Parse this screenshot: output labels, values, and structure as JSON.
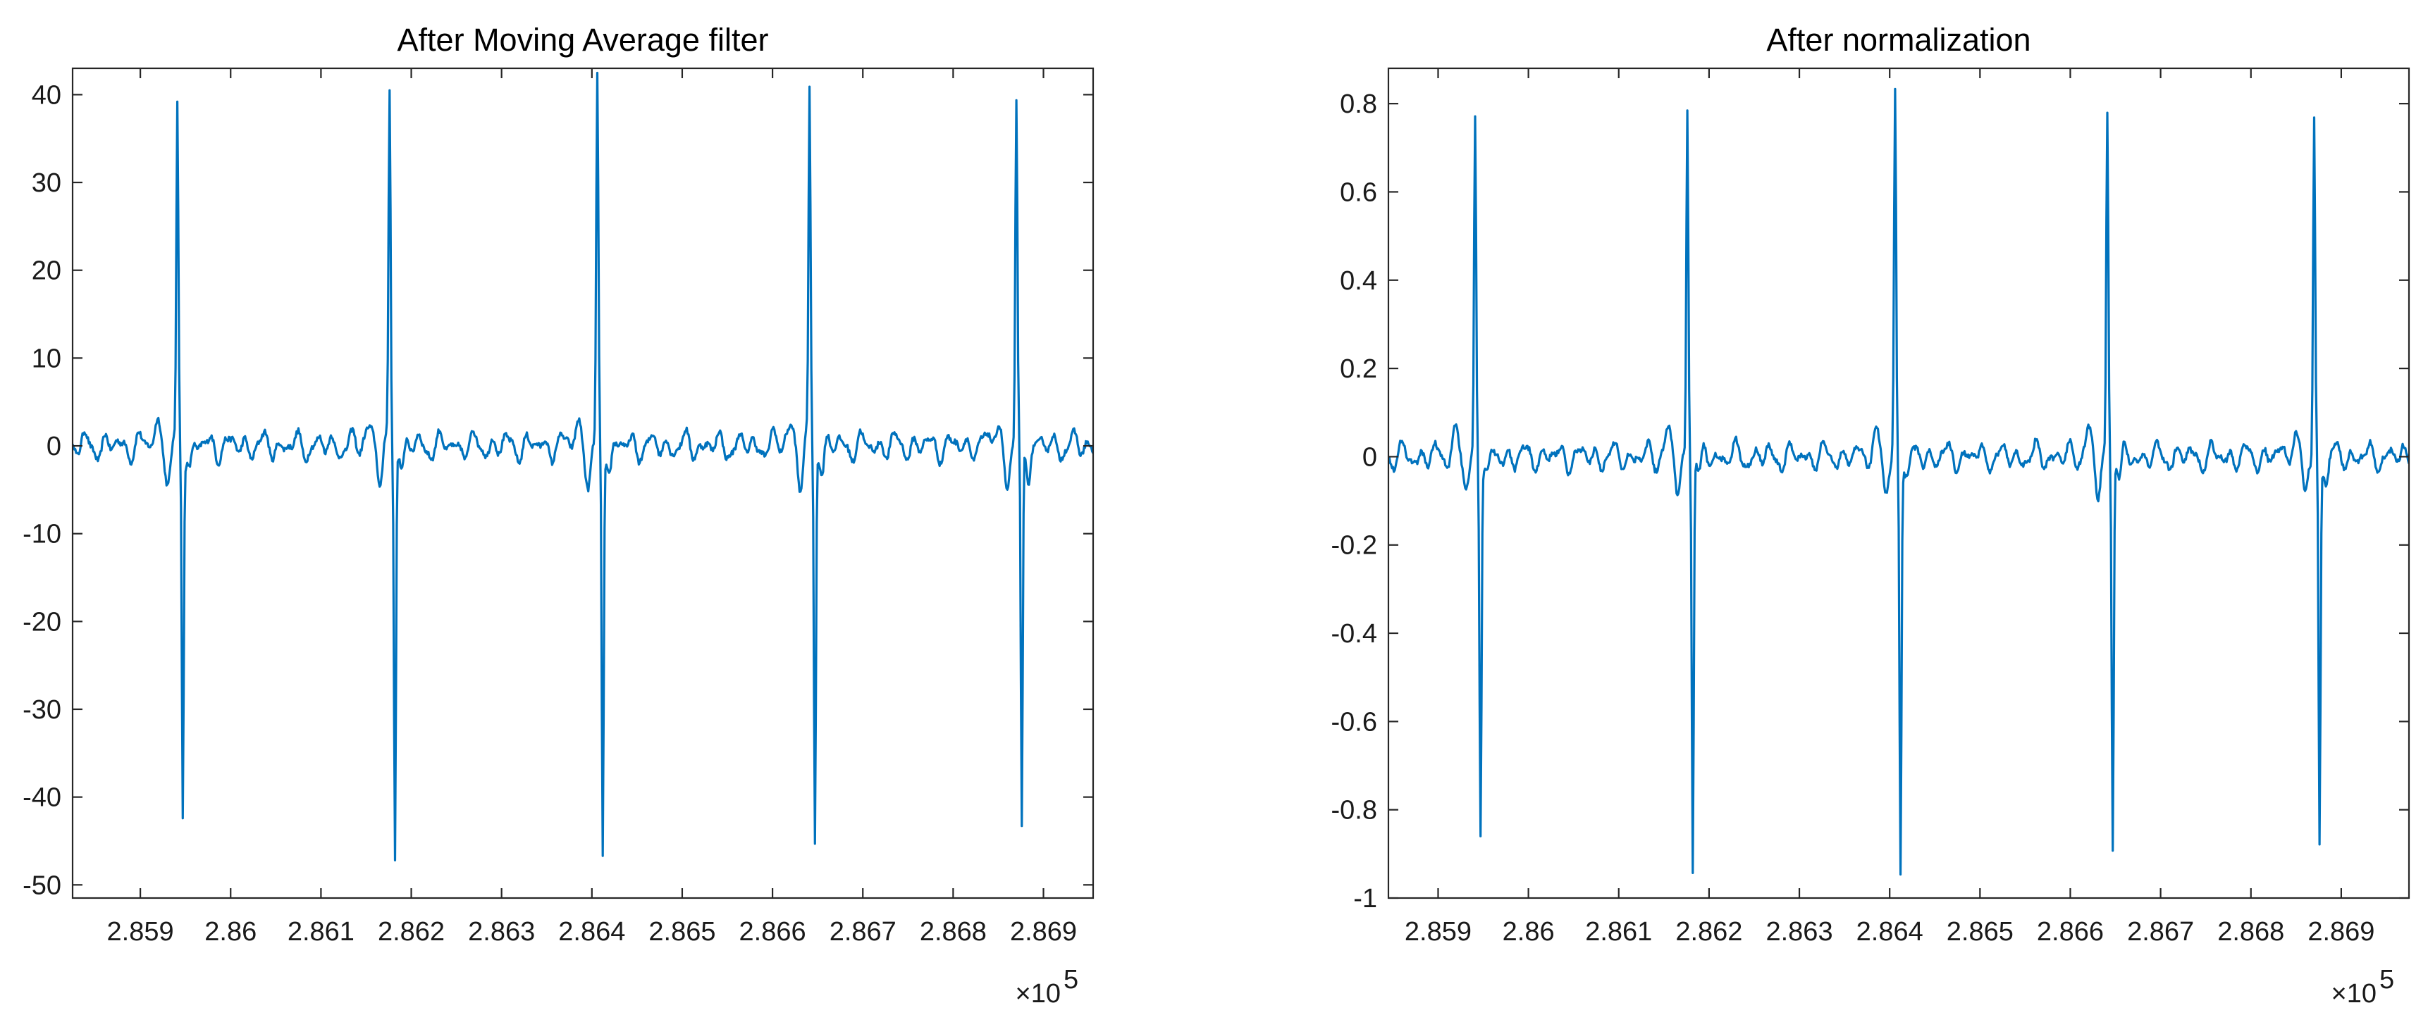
{
  "colors": {
    "line": "#0072BD",
    "axis": "#262626",
    "background": "#ffffff"
  },
  "chart_data": [
    {
      "type": "line",
      "title": "After Moving Average filter",
      "xlabel": "",
      "ylabel": "",
      "xlim": [
        285825,
        286955
      ],
      "ylim": [
        -51.5,
        43
      ],
      "x_multiplier_label": "×10",
      "x_multiplier_exponent": "5",
      "xticks": [
        285900,
        286000,
        286100,
        286200,
        286300,
        286400,
        286500,
        286600,
        286700,
        286800,
        286900
      ],
      "xtick_labels": [
        "2.859",
        "2.86",
        "2.861",
        "2.862",
        "2.863",
        "2.864",
        "2.865",
        "2.866",
        "2.867",
        "2.868",
        "2.869"
      ],
      "yticks": [
        40,
        30,
        20,
        10,
        0,
        -10,
        -20,
        -30,
        -40,
        -50
      ],
      "ytick_labels": [
        "40",
        "30",
        "20",
        "10",
        "0",
        "-10",
        "-20",
        "-30",
        "-40",
        "-50"
      ],
      "beats": [
        {
          "x": 285941,
          "peak": 39,
          "trough": -41.5
        },
        {
          "x": 286176,
          "peak": 41,
          "trough": -46.5
        },
        {
          "x": 286406,
          "peak": 42,
          "trough": -46.5
        },
        {
          "x": 286641,
          "peak": 40.5,
          "trough": -44.5
        },
        {
          "x": 286870,
          "peak": 39.5,
          "trough": -44.5
        }
      ]
    },
    {
      "type": "line",
      "title": "After normalization",
      "xlabel": "",
      "ylabel": "",
      "xlim": [
        285845,
        286975
      ],
      "ylim": [
        -1,
        0.88
      ],
      "x_multiplier_label": "×10",
      "x_multiplier_exponent": "5",
      "xticks": [
        285900,
        286000,
        286100,
        286200,
        286300,
        286400,
        286500,
        286600,
        286700,
        286800,
        286900
      ],
      "xtick_labels": [
        "2.859",
        "2.86",
        "2.861",
        "2.862",
        "2.863",
        "2.864",
        "2.865",
        "2.866",
        "2.867",
        "2.868",
        "2.869"
      ],
      "yticks": [
        0.8,
        0.6,
        0.4,
        0.2,
        0,
        -0.2,
        -0.4,
        -0.6,
        -0.8,
        -1
      ],
      "ytick_labels": [
        "0.8",
        "0.6",
        "0.4",
        "0.2",
        "0",
        "-0.2",
        "-0.4",
        "-0.6",
        "-0.8",
        "-1"
      ],
      "beats": [
        {
          "x": 285941,
          "peak": 0.77,
          "trough": -0.82
        },
        {
          "x": 286176,
          "peak": 0.81,
          "trough": -0.92
        },
        {
          "x": 286406,
          "peak": 0.83,
          "trough": -0.92
        },
        {
          "x": 286641,
          "peak": 0.8,
          "trough": -0.88
        },
        {
          "x": 286870,
          "peak": 0.77,
          "trough": -0.88
        }
      ]
    }
  ]
}
